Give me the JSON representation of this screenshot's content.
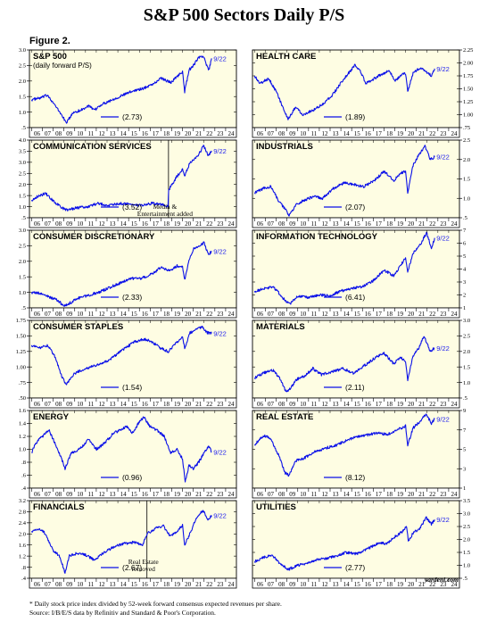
{
  "title": "S&P 500 Sectors Daily P/S",
  "figure_label": "Figure 2.",
  "footnote_lines": [
    "* Daily stock price index divided by 52-week forward consensus expected revenues per share.",
    "Source: I/B/E/S data by Refinitiv and Standard & Poor's Corporation."
  ],
  "credit": "yardeni.com",
  "colors": {
    "panel_bg": "#fefde3",
    "line": "#0a10e8",
    "frame": "#000000"
  },
  "chart_data": [
    {
      "type": "line",
      "title": "S&P 500",
      "subtitle": "(daily forward P/S)",
      "value_label": "(2.73)",
      "date_label": "9/22",
      "ylim": [
        0.5,
        3.0
      ],
      "yticks": [
        0.5,
        1.0,
        1.5,
        2.0,
        2.5,
        3.0
      ],
      "tick_decimals": 1,
      "ytick_side": "left",
      "series": [
        {
          "x": [
            2006.0,
            2006.8,
            2007.5,
            2008.3,
            2008.9,
            2009.2,
            2009.9,
            2010.5,
            2011.3,
            2011.8,
            2012.5,
            2013.5,
            2014.5,
            2015.5,
            2016.3,
            2017.5,
            2018.0,
            2018.9,
            2019.5,
            2020.0,
            2020.2,
            2020.6,
            2021.0,
            2021.5,
            2021.95,
            2022.3,
            2022.45,
            2022.7
          ],
          "values": [
            1.4,
            1.45,
            1.55,
            1.15,
            0.85,
            0.65,
            1.0,
            1.05,
            1.2,
            1.05,
            1.25,
            1.4,
            1.55,
            1.7,
            1.75,
            1.95,
            2.1,
            1.95,
            2.15,
            2.3,
            1.65,
            2.35,
            2.5,
            2.75,
            2.8,
            2.45,
            2.35,
            2.73
          ]
        }
      ]
    },
    {
      "type": "line",
      "title": "HEALTH CARE",
      "subtitle": "",
      "value_label": "(1.89)",
      "date_label": "9/22",
      "ylim": [
        0.75,
        2.25
      ],
      "yticks": [
        0.75,
        1.0,
        1.25,
        1.5,
        1.75,
        2.0,
        2.25
      ],
      "tick_decimals": 2,
      "ytick_side": "right",
      "series": [
        {
          "x": [
            2006.0,
            2006.5,
            2007.3,
            2008.0,
            2008.7,
            2009.1,
            2009.8,
            2010.5,
            2011.5,
            2012.3,
            2013.3,
            2014.3,
            2015.3,
            2015.8,
            2016.3,
            2017.5,
            2018.5,
            2019.0,
            2019.5,
            2020.0,
            2020.2,
            2020.7,
            2021.3,
            2021.8,
            2022.4,
            2022.7
          ],
          "values": [
            1.75,
            1.6,
            1.7,
            1.45,
            1.1,
            0.9,
            1.15,
            1.0,
            1.1,
            1.2,
            1.4,
            1.7,
            1.95,
            1.85,
            1.6,
            1.75,
            1.85,
            1.65,
            1.75,
            1.8,
            1.45,
            1.8,
            1.9,
            1.85,
            1.75,
            1.89
          ]
        }
      ]
    },
    {
      "type": "line",
      "title": "COMMUNICATION SERVICES",
      "subtitle": "",
      "value_label": "(3.52)",
      "date_label": "9/22",
      "annotation": "Media & Entertainment added",
      "annotation_x": 2018.7,
      "ylim": [
        0.5,
        4.0
      ],
      "yticks": [
        0.5,
        1.0,
        1.5,
        2.0,
        2.5,
        3.0,
        3.5,
        4.0
      ],
      "tick_decimals": 1,
      "ytick_side": "left",
      "series": [
        {
          "x": [
            2006.0,
            2006.5,
            2007.3,
            2008.0,
            2008.8,
            2009.3,
            2010.2,
            2011.2,
            2012.2,
            2013.2,
            2014.2,
            2015.2,
            2016.2,
            2017.2,
            2018.0,
            2018.65,
            2018.72,
            2019.4,
            2020.0,
            2020.2,
            2020.7,
            2021.5,
            2021.95,
            2022.4,
            2022.7
          ],
          "values": [
            1.3,
            1.45,
            1.6,
            1.25,
            0.95,
            0.85,
            0.95,
            1.0,
            1.15,
            1.05,
            1.15,
            1.1,
            1.05,
            1.15,
            1.1,
            1.0,
            1.75,
            2.3,
            2.7,
            2.4,
            3.0,
            3.35,
            3.75,
            3.3,
            3.52
          ]
        }
      ]
    },
    {
      "type": "line",
      "title": "INDUSTRIALS",
      "subtitle": "",
      "value_label": "(2.07)",
      "date_label": "9/22",
      "ylim": [
        0.5,
        2.5
      ],
      "yticks": [
        0.5,
        1.0,
        1.5,
        2.0,
        2.5
      ],
      "tick_decimals": 1,
      "ytick_side": "right",
      "series": [
        {
          "x": [
            2006.0,
            2006.8,
            2007.5,
            2008.3,
            2008.9,
            2009.2,
            2009.9,
            2010.6,
            2011.5,
            2012.3,
            2013.3,
            2014.3,
            2015.3,
            2016.1,
            2017.3,
            2018.0,
            2018.9,
            2019.5,
            2020.0,
            2020.2,
            2020.7,
            2021.3,
            2021.8,
            2022.3,
            2022.7
          ],
          "values": [
            1.15,
            1.25,
            1.3,
            0.9,
            0.7,
            0.55,
            0.85,
            0.95,
            1.05,
            1.0,
            1.25,
            1.4,
            1.35,
            1.3,
            1.5,
            1.7,
            1.45,
            1.65,
            1.7,
            1.15,
            1.85,
            2.15,
            2.35,
            2.0,
            2.07
          ]
        }
      ]
    },
    {
      "type": "line",
      "title": "CONSUMER DISCRETIONARY",
      "subtitle": "",
      "value_label": "(2.33)",
      "date_label": "9/22",
      "ylim": [
        0.5,
        3.0
      ],
      "yticks": [
        0.5,
        1.0,
        1.5,
        2.0,
        2.5,
        3.0
      ],
      "tick_decimals": 1,
      "ytick_side": "left",
      "series": [
        {
          "x": [
            2006.0,
            2007.0,
            2007.6,
            2008.4,
            2009.0,
            2009.3,
            2010.2,
            2011.2,
            2012.2,
            2013.2,
            2014.2,
            2015.2,
            2016.2,
            2017.2,
            2018.0,
            2018.9,
            2019.5,
            2020.0,
            2020.2,
            2020.6,
            2021.0,
            2021.6,
            2022.0,
            2022.4,
            2022.7
          ],
          "values": [
            1.0,
            0.95,
            0.85,
            0.75,
            0.55,
            0.6,
            0.8,
            0.9,
            1.0,
            1.15,
            1.3,
            1.45,
            1.45,
            1.6,
            1.8,
            1.7,
            1.85,
            1.85,
            1.4,
            2.0,
            2.4,
            2.5,
            2.6,
            2.2,
            2.33
          ]
        }
      ]
    },
    {
      "type": "line",
      "title": "INFORMATION TECHNOLOGY",
      "subtitle": "",
      "value_label": "(6.41)",
      "date_label": "9/22",
      "ylim": [
        1,
        7
      ],
      "yticks": [
        1,
        2,
        3,
        4,
        5,
        6,
        7
      ],
      "tick_decimals": 0,
      "ytick_side": "right",
      "series": [
        {
          "x": [
            2006.0,
            2006.8,
            2007.7,
            2008.4,
            2008.9,
            2009.3,
            2010.0,
            2011.0,
            2012.0,
            2013.0,
            2014.0,
            2015.0,
            2016.0,
            2017.0,
            2018.0,
            2018.9,
            2019.5,
            2020.0,
            2020.2,
            2020.7,
            2021.3,
            2021.95,
            2022.4,
            2022.7
          ],
          "values": [
            2.3,
            2.45,
            2.65,
            2.0,
            1.5,
            1.35,
            1.9,
            1.8,
            2.0,
            1.95,
            2.3,
            2.5,
            2.65,
            3.1,
            3.9,
            3.5,
            4.2,
            4.9,
            3.8,
            5.2,
            5.8,
            6.8,
            5.6,
            6.41
          ]
        }
      ]
    },
    {
      "type": "line",
      "title": "CONSUMER STAPLES",
      "subtitle": "",
      "value_label": "(1.54)",
      "date_label": "9/22",
      "ylim": [
        0.5,
        1.75
      ],
      "yticks": [
        0.5,
        0.75,
        1.0,
        1.25,
        1.5,
        1.75
      ],
      "tick_decimals": 2,
      "ytick_side": "left",
      "series": [
        {
          "x": [
            2006.0,
            2006.7,
            2007.5,
            2008.2,
            2008.8,
            2009.2,
            2009.9,
            2010.6,
            2011.5,
            2012.5,
            2013.5,
            2014.5,
            2015.5,
            2016.5,
            2017.2,
            2018.0,
            2018.7,
            2019.5,
            2020.0,
            2020.2,
            2020.7,
            2021.3,
            2021.8,
            2022.3,
            2022.7
          ],
          "values": [
            1.35,
            1.3,
            1.35,
            1.15,
            0.85,
            0.72,
            0.88,
            0.95,
            1.0,
            1.05,
            1.15,
            1.28,
            1.4,
            1.45,
            1.4,
            1.3,
            1.25,
            1.4,
            1.5,
            1.3,
            1.55,
            1.6,
            1.65,
            1.55,
            1.54
          ]
        }
      ]
    },
    {
      "type": "line",
      "title": "MATERIALS",
      "subtitle": "",
      "value_label": "(2.11)",
      "date_label": "9/22",
      "ylim": [
        0.5,
        3.0
      ],
      "yticks": [
        0.5,
        1.0,
        1.5,
        2.0,
        2.5,
        3.0
      ],
      "tick_decimals": 1,
      "ytick_side": "right",
      "series": [
        {
          "x": [
            2006.0,
            2006.8,
            2007.7,
            2008.4,
            2008.9,
            2009.2,
            2009.9,
            2010.6,
            2011.4,
            2012.2,
            2013.2,
            2014.2,
            2015.2,
            2016.0,
            2017.0,
            2018.0,
            2018.9,
            2019.5,
            2020.0,
            2020.2,
            2020.7,
            2021.3,
            2021.7,
            2022.3,
            2022.7
          ],
          "values": [
            1.15,
            1.3,
            1.4,
            1.1,
            0.7,
            0.75,
            1.1,
            1.2,
            1.45,
            1.25,
            1.35,
            1.45,
            1.3,
            1.5,
            1.75,
            1.95,
            1.6,
            1.8,
            1.7,
            1.1,
            1.85,
            2.15,
            2.5,
            2.0,
            2.11
          ]
        }
      ]
    },
    {
      "type": "line",
      "title": "ENERGY",
      "subtitle": "",
      "value_label": "(0.96)",
      "date_label": "9/22",
      "ylim": [
        0.4,
        1.6
      ],
      "yticks": [
        0.4,
        0.6,
        0.8,
        1.0,
        1.2,
        1.4,
        1.6
      ],
      "tick_decimals": 1,
      "ytick_side": "left",
      "series": [
        {
          "x": [
            2006.0,
            2006.4,
            2007.0,
            2007.6,
            2008.3,
            2008.8,
            2009.1,
            2009.7,
            2010.4,
            2011.3,
            2012.0,
            2012.8,
            2013.6,
            2014.3,
            2014.8,
            2015.4,
            2015.9,
            2016.4,
            2017.0,
            2017.6,
            2018.3,
            2018.9,
            2019.5,
            2020.0,
            2020.25,
            2020.6,
            2021.0,
            2021.5,
            2022.0,
            2022.4,
            2022.7
          ],
          "values": [
            0.95,
            1.1,
            1.2,
            1.3,
            1.05,
            0.85,
            0.7,
            0.95,
            1.0,
            1.15,
            1.0,
            1.1,
            1.25,
            1.3,
            1.35,
            1.25,
            1.4,
            1.5,
            1.35,
            1.3,
            1.2,
            0.95,
            1.0,
            0.85,
            0.5,
            0.75,
            0.7,
            0.8,
            0.95,
            1.05,
            0.96
          ]
        }
      ]
    },
    {
      "type": "line",
      "title": "REAL ESTATE",
      "subtitle": "",
      "value_label": "(8.12)",
      "date_label": "9/22",
      "ylim": [
        1,
        9
      ],
      "yticks": [
        1,
        3,
        5,
        7,
        9
      ],
      "tick_decimals": 0,
      "ytick_side": "right",
      "series": [
        {
          "x": [
            2006.0,
            2006.8,
            2007.4,
            2008.2,
            2008.8,
            2009.2,
            2009.8,
            2010.6,
            2011.5,
            2012.5,
            2013.5,
            2014.5,
            2015.5,
            2016.5,
            2017.5,
            2018.3,
            2019.2,
            2020.0,
            2020.2,
            2020.7,
            2021.3,
            2021.9,
            2022.4,
            2022.7
          ],
          "values": [
            5.5,
            6.4,
            6.2,
            4.5,
            2.6,
            2.3,
            3.8,
            4.1,
            4.7,
            5.1,
            5.4,
            5.9,
            6.3,
            6.5,
            6.7,
            6.5,
            7.0,
            7.4,
            5.4,
            7.2,
            7.8,
            8.6,
            7.7,
            8.12
          ]
        }
      ]
    },
    {
      "type": "line",
      "title": "FINANCIALS",
      "subtitle": "",
      "value_label": "(2.67)",
      "date_label": "9/22",
      "annotation": "Real Estate removed",
      "annotation_x": 2016.7,
      "ylim": [
        0.4,
        3.2
      ],
      "yticks": [
        0.4,
        0.8,
        1.2,
        1.6,
        2.0,
        2.4,
        2.8,
        3.2
      ],
      "tick_decimals": 1,
      "ytick_side": "left",
      "series": [
        {
          "x": [
            2006.0,
            2006.7,
            2007.3,
            2008.0,
            2008.6,
            2009.1,
            2009.5,
            2010.2,
            2011.0,
            2011.8,
            2012.6,
            2013.5,
            2014.5,
            2015.5,
            2016.3,
            2016.7,
            2017.5,
            2018.2,
            2018.9,
            2019.5,
            2020.0,
            2020.2,
            2020.8,
            2021.3,
            2021.9,
            2022.4,
            2022.7
          ],
          "values": [
            2.1,
            2.2,
            2.0,
            1.4,
            1.2,
            0.6,
            1.2,
            1.3,
            1.25,
            1.05,
            1.3,
            1.5,
            1.65,
            1.7,
            1.6,
            2.0,
            2.2,
            2.3,
            1.9,
            2.1,
            2.3,
            1.6,
            2.1,
            2.6,
            2.85,
            2.5,
            2.67
          ]
        }
      ]
    },
    {
      "type": "line",
      "title": "UTILITIES",
      "subtitle": "",
      "value_label": "(2.77)",
      "date_label": "9/22",
      "ylim": [
        0.5,
        3.5
      ],
      "yticks": [
        0.5,
        1.0,
        1.5,
        2.0,
        2.5,
        3.0,
        3.5
      ],
      "tick_decimals": 1,
      "ytick_side": "right",
      "series": [
        {
          "x": [
            2006.0,
            2006.8,
            2007.6,
            2008.3,
            2008.9,
            2009.2,
            2009.9,
            2010.7,
            2011.6,
            2012.5,
            2013.5,
            2014.5,
            2015.5,
            2016.5,
            2017.5,
            2018.3,
            2019.0,
            2019.7,
            2020.1,
            2020.25,
            2020.8,
            2021.3,
            2021.9,
            2022.4,
            2022.7
          ],
          "values": [
            1.15,
            1.3,
            1.4,
            1.1,
            0.9,
            0.85,
            1.0,
            1.05,
            1.2,
            1.25,
            1.35,
            1.5,
            1.45,
            1.65,
            1.85,
            1.85,
            2.1,
            2.3,
            2.5,
            1.95,
            2.3,
            2.4,
            2.85,
            2.6,
            2.77
          ]
        }
      ]
    }
  ],
  "x_axis": {
    "xlim": [
      2005.8,
      2025.0
    ],
    "tick_labels": [
      "06",
      "07",
      "08",
      "09",
      "10",
      "11",
      "12",
      "13",
      "14",
      "15",
      "16",
      "17",
      "18",
      "19",
      "20",
      "21",
      "22",
      "23",
      "24"
    ],
    "tick_years": [
      2006,
      2007,
      2008,
      2009,
      2010,
      2011,
      2012,
      2013,
      2014,
      2015,
      2016,
      2017,
      2018,
      2019,
      2020,
      2021,
      2022,
      2023,
      2024
    ]
  }
}
